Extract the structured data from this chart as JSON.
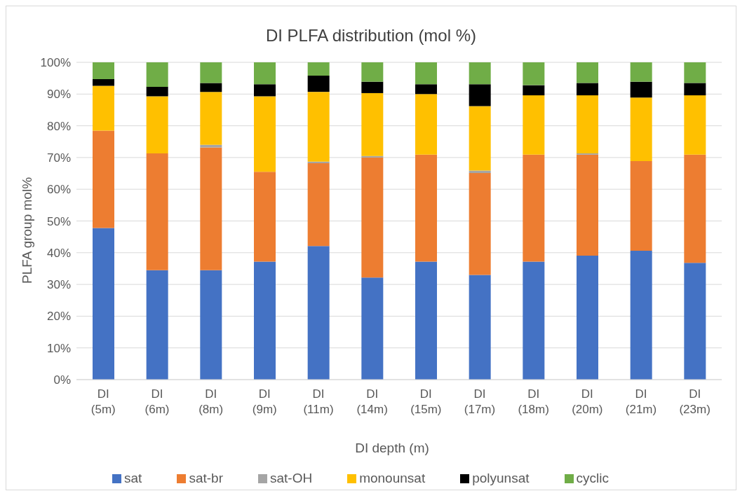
{
  "chart_data": {
    "type": "bar",
    "title": "DI PLFA distribution (mol %)",
    "xlabel": "DI depth (m)",
    "ylabel": "PLFA group mol%",
    "stacked": true,
    "grid": "y",
    "legend": "bottom",
    "categories": [
      "DI\n(5m)",
      "DI\n(6m)",
      "DI\n(8m)",
      "DI\n(9m)",
      "DI\n(11m)",
      "DI\n(14m)",
      "DI\n(15m)",
      "DI\n(17m)",
      "DI\n(18m)",
      "DI\n(20m)",
      "DI\n(21m)",
      "DI\n(23m)"
    ],
    "ylim": [
      0,
      100
    ],
    "yticks": [
      {
        "value": 0,
        "label": "0%"
      },
      {
        "value": 10,
        "label": "10%"
      },
      {
        "value": 20,
        "label": "20%"
      },
      {
        "value": 30,
        "label": "30%"
      },
      {
        "value": 40,
        "label": "40%"
      },
      {
        "value": 50,
        "label": "50%"
      },
      {
        "value": 60,
        "label": "60%"
      },
      {
        "value": 70,
        "label": "70%"
      },
      {
        "value": 80,
        "label": "80%"
      },
      {
        "value": 90,
        "label": "90%"
      },
      {
        "value": 100,
        "label": "100%"
      }
    ],
    "series": [
      {
        "name": "sat",
        "color": "#4472c4",
        "values": [
          47.8,
          34.5,
          34.5,
          37.2,
          42.1,
          32.2,
          37.2,
          33.0,
          37.2,
          39.1,
          40.6,
          36.8
        ]
      },
      {
        "name": "sat-br",
        "color": "#ed7d31",
        "values": [
          30.7,
          36.8,
          38.7,
          28.3,
          26.1,
          37.8,
          33.7,
          32.1,
          33.7,
          31.8,
          28.3,
          34.1
        ]
      },
      {
        "name": "sat-OH",
        "color": "#a5a5a5",
        "values": [
          0,
          0,
          0.8,
          0,
          0.5,
          0.5,
          0,
          0.8,
          0,
          0.4,
          0,
          0
        ]
      },
      {
        "name": "monounsat",
        "color": "#ffc000",
        "values": [
          14.1,
          18.0,
          16.7,
          23.8,
          22.0,
          19.8,
          19.1,
          20.3,
          18.7,
          18.3,
          20.0,
          18.7
        ]
      },
      {
        "name": "polyunsat",
        "color": "#000000",
        "values": [
          2.1,
          3.0,
          2.8,
          3.8,
          5.1,
          3.6,
          3.1,
          6.9,
          3.2,
          3.9,
          5.0,
          3.9
        ]
      },
      {
        "name": "cyclic",
        "color": "#70ad47",
        "values": [
          5.3,
          7.7,
          6.5,
          6.9,
          4.2,
          6.1,
          6.9,
          6.9,
          7.2,
          6.5,
          6.1,
          6.5
        ]
      }
    ]
  }
}
